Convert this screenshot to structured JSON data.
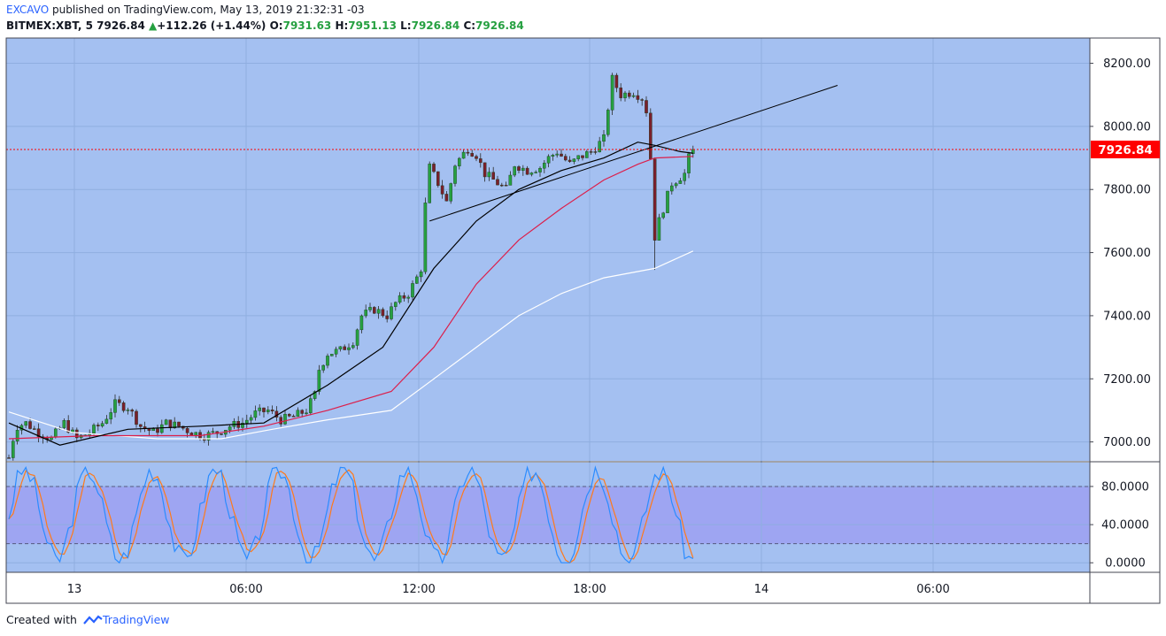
{
  "header": {
    "author": "EXCAVO",
    "published_text": " published on TradingView.com, May 13, 2019 21:32:31 -03",
    "symbol": "BITMEX:XBT, 5",
    "last": "7926.84",
    "change": "+112.26 (+1.44%)",
    "o_label": "O:",
    "o": "7931.63",
    "h_label": "H:",
    "h": "7951.13",
    "l_label": "L:",
    "l": "7926.84",
    "c_label": "C:",
    "c": "7926.84"
  },
  "footer": {
    "created_with": "Created with",
    "brand": "TradingView"
  },
  "colors": {
    "panel_bg": "#a4c0f1",
    "stoch_band": "#9ea5f2",
    "up_candle": "#26a041",
    "down_candle": "#7a1f2b",
    "price_line": "#ff0000",
    "ema_black": "#000000",
    "ema_red": "#dc1e4a",
    "ema_white": "#ffffff",
    "k_line": "#2b8cff",
    "d_line": "#ff7a1a"
  },
  "chart_data": {
    "type": "candlestick",
    "price_axis": {
      "ticks": [
        "8200.00",
        "8000.00",
        "7800.00",
        "7600.00",
        "7400.00",
        "7200.00",
        "7000.00"
      ],
      "range": [
        6940,
        8280
      ]
    },
    "time_axis": {
      "ticks": [
        "13",
        "06:00",
        "12:00",
        "18:00",
        "14",
        "06:00"
      ]
    },
    "last_price_label": "7926.84",
    "close_path": [
      [
        0,
        6950
      ],
      [
        1,
        7010
      ],
      [
        2,
        7050
      ],
      [
        4,
        7060
      ],
      [
        7,
        7030
      ],
      [
        10,
        7010
      ],
      [
        13,
        7060
      ],
      [
        16,
        7010
      ],
      [
        19,
        7030
      ],
      [
        22,
        7060
      ],
      [
        25,
        7120
      ],
      [
        28,
        7110
      ],
      [
        31,
        7050
      ],
      [
        34,
        7030
      ],
      [
        37,
        7060
      ],
      [
        40,
        7050
      ],
      [
        43,
        7030
      ],
      [
        46,
        7020
      ],
      [
        49,
        7030
      ],
      [
        52,
        7050
      ],
      [
        55,
        7060
      ],
      [
        58,
        7090
      ],
      [
        61,
        7100
      ],
      [
        64,
        7070
      ],
      [
        67,
        7080
      ],
      [
        70,
        7100
      ],
      [
        72,
        7150
      ],
      [
        73,
        7230
      ],
      [
        75,
        7280
      ],
      [
        78,
        7290
      ],
      [
        81,
        7320
      ],
      [
        83,
        7400
      ],
      [
        86,
        7420
      ],
      [
        89,
        7400
      ],
      [
        91,
        7440
      ],
      [
        94,
        7470
      ],
      [
        96,
        7520
      ],
      [
        97,
        7550
      ],
      [
        98,
        7750
      ],
      [
        99,
        7870
      ],
      [
        101,
        7820
      ],
      [
        103,
        7760
      ],
      [
        105,
        7880
      ],
      [
        108,
        7930
      ],
      [
        110,
        7910
      ],
      [
        112,
        7850
      ],
      [
        114,
        7830
      ],
      [
        117,
        7800
      ],
      [
        119,
        7880
      ],
      [
        122,
        7860
      ],
      [
        125,
        7870
      ],
      [
        127,
        7900
      ],
      [
        129,
        7920
      ],
      [
        132,
        7880
      ],
      [
        134,
        7900
      ],
      [
        137,
        7920
      ],
      [
        140,
        7960
      ],
      [
        141,
        8060
      ],
      [
        142,
        8150
      ],
      [
        144,
        8100
      ],
      [
        147,
        8110
      ],
      [
        149,
        8090
      ],
      [
        150,
        8050
      ],
      [
        151,
        7900
      ],
      [
        152,
        7650
      ],
      [
        153,
        7700
      ],
      [
        154,
        7740
      ],
      [
        156,
        7820
      ],
      [
        158,
        7840
      ],
      [
        159,
        7850
      ],
      [
        160,
        7900
      ],
      [
        161,
        7926.84
      ]
    ],
    "ema_black": [
      [
        0,
        7060
      ],
      [
        12,
        6990
      ],
      [
        28,
        7040
      ],
      [
        45,
        7050
      ],
      [
        60,
        7060
      ],
      [
        75,
        7180
      ],
      [
        88,
        7300
      ],
      [
        100,
        7550
      ],
      [
        110,
        7700
      ],
      [
        120,
        7800
      ],
      [
        130,
        7860
      ],
      [
        140,
        7900
      ],
      [
        148,
        7950
      ],
      [
        152,
        7940
      ],
      [
        158,
        7920
      ],
      [
        161,
        7915
      ]
    ],
    "ema_red": [
      [
        0,
        7010
      ],
      [
        20,
        7020
      ],
      [
        45,
        7020
      ],
      [
        60,
        7050
      ],
      [
        75,
        7100
      ],
      [
        90,
        7160
      ],
      [
        100,
        7300
      ],
      [
        110,
        7500
      ],
      [
        120,
        7640
      ],
      [
        130,
        7740
      ],
      [
        140,
        7830
      ],
      [
        148,
        7880
      ],
      [
        152,
        7900
      ],
      [
        161,
        7905
      ]
    ],
    "ema_white": [
      [
        0,
        7095
      ],
      [
        15,
        7030
      ],
      [
        35,
        7010
      ],
      [
        50,
        7010
      ],
      [
        62,
        7040
      ],
      [
        75,
        7070
      ],
      [
        90,
        7100
      ],
      [
        100,
        7200
      ],
      [
        110,
        7300
      ],
      [
        120,
        7400
      ],
      [
        130,
        7470
      ],
      [
        140,
        7520
      ],
      [
        152,
        7550
      ],
      [
        161,
        7605
      ]
    ],
    "trendlines": [
      {
        "from": [
          99,
          7700
        ],
        "to": [
          195,
          8130
        ]
      }
    ],
    "stochastic": {
      "levels": [
        "80.0000",
        "40.0000",
        "0.0000"
      ],
      "band": [
        20,
        80
      ],
      "range": [
        -10,
        105
      ]
    }
  }
}
